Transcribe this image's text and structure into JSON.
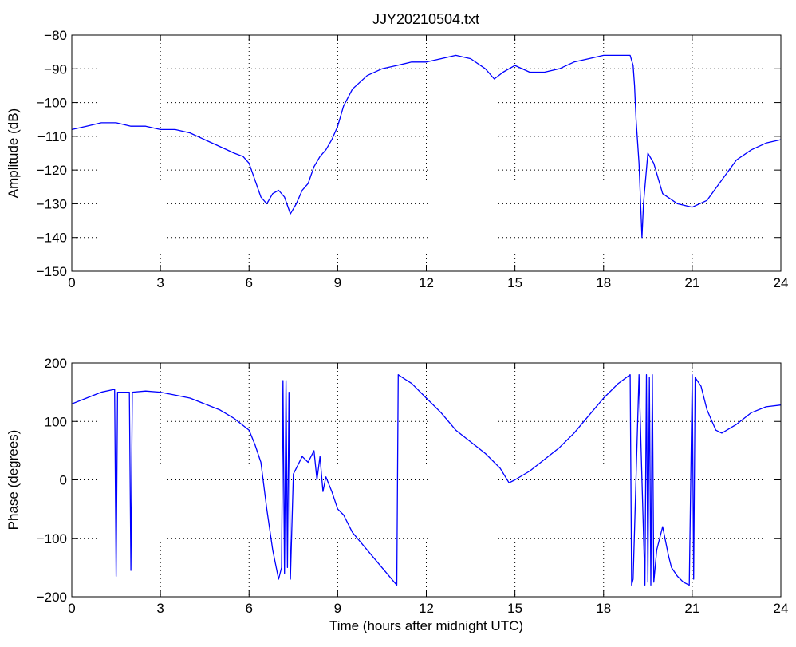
{
  "figure": {
    "title": "JJY20210504.txt"
  },
  "chart_data": [
    {
      "type": "line",
      "title": "JJY20210504.txt",
      "xlabel": "",
      "ylabel": "Amplitude (dB)",
      "xlim": [
        0,
        24
      ],
      "ylim": [
        -150,
        -80
      ],
      "xticks": [
        0,
        3,
        6,
        9,
        12,
        15,
        18,
        21,
        24
      ],
      "yticks": [
        -150,
        -140,
        -130,
        -120,
        -110,
        -100,
        -90,
        -80
      ],
      "grid": true,
      "color": "#0000ff",
      "series": [
        {
          "x": [
            0,
            0.5,
            1,
            1.5,
            2,
            2.5,
            3,
            3.5,
            4,
            4.5,
            5,
            5.5,
            5.8,
            6.0,
            6.2,
            6.4,
            6.6,
            6.8,
            7.0,
            7.2,
            7.4,
            7.6,
            7.8,
            8.0,
            8.2,
            8.4,
            8.6,
            8.8,
            9.0,
            9.2,
            9.5,
            10,
            10.5,
            11,
            11.5,
            12,
            12.5,
            13,
            13.5,
            14,
            14.3,
            14.6,
            15,
            15.5,
            16,
            16.5,
            17,
            17.5,
            18,
            18.5,
            18.9,
            19.0,
            19.05,
            19.1,
            19.2,
            19.3,
            19.35,
            19.5,
            19.7,
            20,
            20.5,
            21,
            21.5,
            22,
            22.5,
            23,
            23.5,
            24
          ],
          "y": [
            -108,
            -107,
            -106,
            -106,
            -107,
            -107,
            -108,
            -108,
            -109,
            -111,
            -113,
            -115,
            -116,
            -118,
            -123,
            -128,
            -130,
            -127,
            -126,
            -128,
            -133,
            -130,
            -126,
            -124,
            -119,
            -116,
            -114,
            -111,
            -107,
            -101,
            -96,
            -92,
            -90,
            -89,
            -88,
            -88,
            -87,
            -86,
            -87,
            -90,
            -93,
            -91,
            -89,
            -91,
            -91,
            -90,
            -88,
            -87,
            -86,
            -86,
            -86,
            -89,
            -95,
            -105,
            -118,
            -140,
            -130,
            -115,
            -118,
            -127,
            -130,
            -131,
            -129,
            -123,
            -117,
            -114,
            -112,
            -111
          ]
        }
      ]
    },
    {
      "type": "line",
      "title": "",
      "xlabel": "Time (hours after midnight UTC)",
      "ylabel": "Phase (degrees)",
      "xlim": [
        0,
        24
      ],
      "ylim": [
        -200,
        200
      ],
      "xticks": [
        0,
        3,
        6,
        9,
        12,
        15,
        18,
        21,
        24
      ],
      "yticks": [
        -200,
        -100,
        0,
        100,
        200
      ],
      "grid": true,
      "color": "#0000ff",
      "series": [
        {
          "x": [
            0,
            0.5,
            1,
            1.45,
            1.5,
            1.55,
            1.95,
            2.0,
            2.05,
            2.5,
            3,
            3.5,
            4,
            4.5,
            5,
            5.5,
            6,
            6.2,
            6.4,
            6.6,
            6.8,
            7.0,
            7.1,
            7.15,
            7.2,
            7.25,
            7.3,
            7.35,
            7.4,
            7.5,
            7.6,
            7.8,
            8.0,
            8.2,
            8.3,
            8.4,
            8.5,
            8.6,
            8.8,
            9.0,
            9.2,
            9.5,
            10,
            10.5,
            11.0,
            11.05,
            11.1,
            11.5,
            12,
            12.5,
            13,
            13.5,
            14,
            14.5,
            14.8,
            15,
            15.5,
            16,
            16.5,
            17,
            17.5,
            18,
            18.5,
            18.9,
            18.95,
            19.0,
            19.2,
            19.4,
            19.45,
            19.5,
            19.55,
            19.6,
            19.65,
            19.7,
            19.8,
            20.0,
            20.2,
            20.3,
            20.5,
            20.7,
            20.9,
            21.0,
            21.05,
            21.1,
            21.3,
            21.5,
            21.8,
            22,
            22.5,
            23,
            23.5,
            24
          ],
          "y": [
            130,
            140,
            150,
            155,
            -165,
            150,
            150,
            -155,
            150,
            152,
            150,
            145,
            140,
            130,
            120,
            105,
            85,
            60,
            30,
            -50,
            -120,
            -170,
            -150,
            170,
            -160,
            170,
            -150,
            150,
            -170,
            10,
            20,
            40,
            30,
            50,
            0,
            40,
            -20,
            5,
            -20,
            -50,
            -60,
            -90,
            -120,
            -150,
            -180,
            180,
            178,
            165,
            140,
            115,
            85,
            65,
            45,
            20,
            -5,
            0,
            15,
            35,
            55,
            80,
            110,
            140,
            165,
            180,
            -180,
            -170,
            180,
            -180,
            180,
            -175,
            175,
            -180,
            180,
            -175,
            -120,
            -80,
            -130,
            -150,
            -165,
            -175,
            -180,
            180,
            -170,
            175,
            160,
            120,
            85,
            80,
            95,
            115,
            125,
            128
          ]
        }
      ]
    }
  ]
}
